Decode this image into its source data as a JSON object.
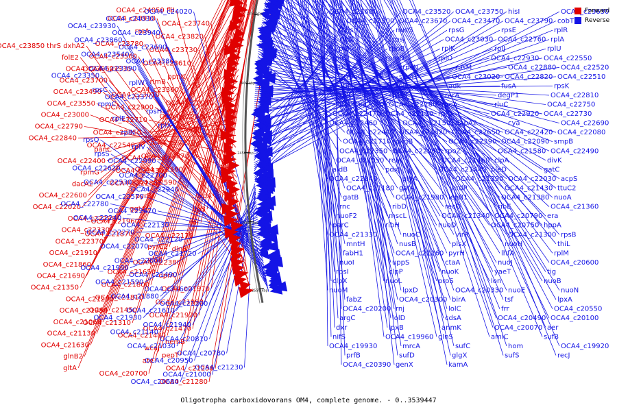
{
  "legend": {
    "forward_label": "Forward",
    "reverse_label": "Reverse",
    "forward_color": "#e00000",
    "reverse_color": "#1414e6"
  },
  "caption": "Oligotropha carboxidovorans OM4, complete genome. - 0..3539447",
  "scale_ticks": [
    "2550 kbp",
    "2500 kbp",
    "2450 kbp",
    "2400 kbp",
    "2350 kbp",
    "2300 kbp",
    "2250 kbp",
    "2200 kbp"
  ],
  "forward_labels": [
    "OCA4_c24050 fliI",
    "OCA4_c23910",
    "OCA4_c23850 thrS dxhA2",
    "OCA4_c23740",
    "rssA",
    "folE2",
    "OCA4_c23820",
    "OCA4_c23780",
    "OCA4_c23660",
    "OCA4_c23730",
    "OCA4_c23560",
    "OCA4_c23700",
    "OCA4_c23610",
    "OCA4_c23530",
    "OCA4_c23490",
    "ppnK",
    "rlmB",
    "OCA4_c23550",
    "OCA4_c23360",
    "OCA4_c23010",
    "OCA4_c23000",
    "OCA4_c22910",
    "OCA4_c22900",
    "OCA4_c22790",
    "OCA4_c22830",
    "OCA4_c22710",
    "OCA4_c22840",
    "adhI",
    "OCA4_c22850",
    "panC",
    "OCA4_c22770",
    "OCA4_c22540",
    "OCA4_c22400",
    "OCA4_c22870",
    "OCA4_c22360",
    "rpmG",
    "OCA4_c22580",
    "OCA4_c22430",
    "dacA2",
    "OCA4_c22590",
    "OCA4_c22280",
    "OCA4_c22600",
    "topA",
    "pyrB",
    "OCA4_c22020",
    "lipB",
    "ggt4",
    "OCA4_c22290",
    "rnr",
    "OCA4_c21960",
    "OCA4_c22330",
    "OCA4_c22170",
    "OCA4_c21870",
    "OCA4_c22370",
    "dinB",
    "pyrC2",
    "OCA4_c21910",
    "OCA4_c22380",
    "plsY",
    "OCA4_c21860",
    "dprA",
    "OCA4_c21650",
    "OCA4_c21690",
    "OCA4_c21970",
    "OCA4_c21800",
    "OCA4_c21350",
    "OCA4_c21990",
    "OCA4_c21810",
    "OCA4_c21290",
    "OCA4_c21920",
    "OCA4_c21450",
    "OCA4_c21950",
    "OCA4_c21470",
    "OCA4_c21310",
    "OCA4_c21060",
    "hemB",
    "OCA4_c21480",
    "OCA4_c21130",
    "pepT",
    "wcaJ",
    "OCA4_c21630",
    "OCA4_c21250",
    "ate",
    "glnB2",
    "OCA4_c21280",
    "OCA4_c20700",
    "gltA"
  ],
  "reverse_labels": [
    "OCA4_c24020",
    "OCA4_c24030",
    "OCA4_c23930",
    "OCA4_c23940",
    "OCA4_c23860",
    "OCA4_c23690",
    "OCA4_c23540",
    "OCA4_c23380",
    "OCA4_c23390",
    "OCA4_c23350",
    "rplW",
    "rpsC",
    "OCA4_c23370",
    "rpmC",
    "rpsH",
    "rplE",
    "rplX",
    "rplN",
    "rpsQ",
    "rplV",
    "rpsS",
    "OCA4_c22990",
    "OCA4_c22620",
    "OCA4_c22700",
    "OCA4_c22530",
    "OCA4_c22940",
    "OCA4_c22570",
    "OCA4_c22780",
    "OCA4_c22670",
    "OCA4_c22240",
    "OCA4_c22130",
    "OCA4_c22270",
    "OCA4_c22120",
    "OCA4_c22070",
    "OCA4_c21720",
    "OCA4_c22000",
    "OCA4_c21900",
    "OCA4_c21490",
    "OCA4_c21590",
    "OCA4_c21600",
    "OCA4_c21880",
    "OCA4_c21200",
    "OCA4_c21610",
    "OCA4_c21930",
    "OCA4_c21940",
    "OCA4_c21140",
    "OCA4_c20810",
    "OCA4_c21030",
    "OCA4_c20780",
    "OCA4_c20950",
    "OCA4_c21230",
    "OCA4_c21000",
    "OCA4_c20680",
    "OCA4_c23680",
    "OCA4_c23520",
    "OCA4_c23750",
    "hisI",
    "OCA4_c23630",
    "OCA4_c23500",
    "OCA4_c23670",
    "OCA4_c23470",
    "OCA4_c23790",
    "cobT2",
    "ths",
    "nusG",
    "rpsG",
    "rpsE",
    "rplR",
    "rpsL",
    "rpsJ",
    "OCA4_c23030",
    "OCA4_c22760",
    "rplA",
    "rplB",
    "rpoB",
    "rplK",
    "rplJ",
    "rplU",
    "rplC",
    "rpmD",
    "rplO",
    "OCA4_c22930",
    "OCA4_c22550",
    "rplD",
    "rpsN",
    "rpsM",
    "OCA4_c22880",
    "OCA4_c22520",
    "rpoC",
    "secY",
    "OCA4_c23020",
    "OCA4_c22820",
    "OCA4_c22510",
    "tuf",
    "rplP",
    "adk",
    "fusA",
    "rpsK",
    "rplF",
    "rpsR",
    "rarA",
    "degP1",
    "OCA4_c22810",
    "OCA4_c22500",
    "OCA4_c22180",
    "rpoA",
    "rluC",
    "OCA4_c22750",
    "OCA4_c22470",
    "OCA4_c22110",
    "rplQ",
    "OCA4_c22920",
    "OCA4_c22730",
    "OCA4_c22460",
    "OCA4_c22150",
    "dapA2",
    "cya",
    "OCA4_c22690",
    "OCA4_c22440",
    "OCA4_c21820",
    "OCA4_c22650",
    "OCA4_c22420",
    "OCA4_c22080",
    "OCA4_c21710",
    "dkgB",
    "OCA4_c22390",
    "OCA4_c22090",
    "smpB",
    "OCA4_c22350",
    "OCA4_c22060",
    "rpoZ",
    "OCA4_c21580",
    "OCA4_c22490",
    "OCA4_c22050",
    "relA",
    "OCA4_c21460",
    "clpA",
    "divK",
    "aidB",
    "pdxJ",
    "OCA4_c21440",
    "pleD",
    "gatC",
    "OCA4_c22040",
    "glyA",
    "OCA4_c21390",
    "OCA4_c22030",
    "acpS",
    "OCA4_c21180",
    "gatA",
    "nrdR",
    "OCA4_c21430",
    "ttuC2",
    "gatB",
    "OCA4_c21980",
    "lepB1",
    "OCA4_c21380",
    "nuoA",
    "rnc",
    "ribD",
    "recO",
    "ribE",
    "OCA4_c21360",
    "nuoF2",
    "mscL",
    "OCA4_c21340",
    "OCA4_c20790",
    "era",
    "parC",
    "ribH",
    "nuoD",
    "OCA4_c20750",
    "hppA",
    "OCA4_c21330",
    "nuoC",
    "virR",
    "OCA4_c21300",
    "rpsB",
    "mntH",
    "nusB",
    "plsX",
    "nuoH",
    "thiL",
    "fabH1",
    "OCA4_c21260",
    "pyrH",
    "lhfA",
    "rplM",
    "nuoI",
    "uppS",
    "ctaA",
    "nuoJ",
    "OCA4_c20600",
    "rpsI",
    "clpP",
    "nuoK",
    "yaeT",
    "tig",
    "clpX",
    "nuoL",
    "proS",
    "lon",
    "nuoB",
    "nuoM",
    "lpxD",
    "OCA4_c20330",
    "nuoE",
    "nuoN",
    "fabZ",
    "OCA4_c20300",
    "birA",
    "tsf",
    "lpxA",
    "OCA4_c20200",
    "rnj",
    "lolC",
    "frr",
    "OCA4_c20550",
    "argC",
    "lolD",
    "cdsA",
    "OCA4_c20490",
    "OCA4_c20100",
    "dxr",
    "lpxB",
    "anmK",
    "OCA4_c20070",
    "aer",
    "nifS",
    "OCA4_c19960",
    "glnS",
    "amiC",
    "sufB",
    "OCA4_c19930",
    "mrcA",
    "sufC",
    "hom",
    "OCA4_c19920",
    "prfB",
    "sufD",
    "glgX",
    "sufS",
    "recJ",
    "OCA4_c20390",
    "genX",
    "kamA"
  ]
}
